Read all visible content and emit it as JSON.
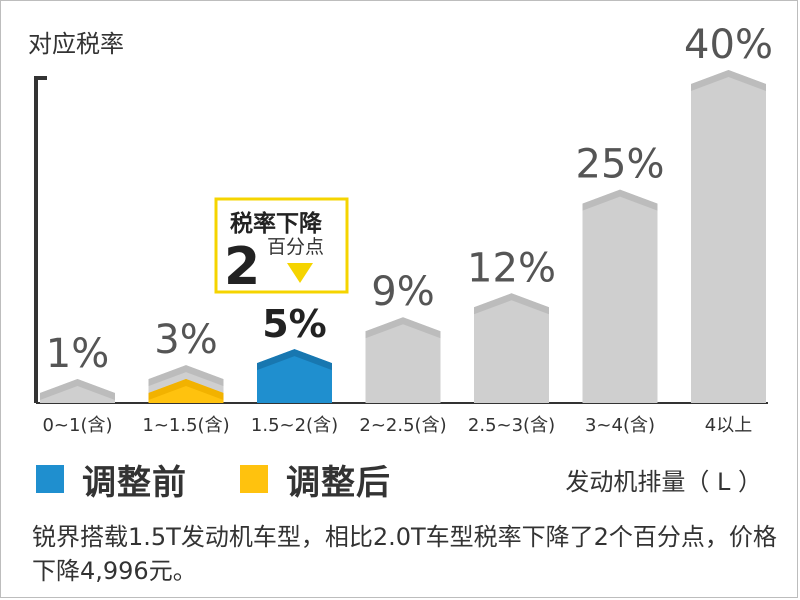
{
  "chart_data": {
    "type": "bar",
    "ylabel": "对应税率",
    "xlabel": "发动机排量（ L ）",
    "categories": [
      "0~1(含)",
      "1~1.5(含)",
      "1.5~2(含)",
      "2~2.5(含)",
      "2.5~3(含)",
      "3~4(含)",
      "4以上"
    ],
    "ylim": [
      0,
      40
    ],
    "grid": false,
    "legend_placement": "bottom-left",
    "series": [
      {
        "name": "调整前",
        "values": [
          1,
          3,
          5,
          9,
          12,
          25,
          40
        ]
      },
      {
        "name": "调整后",
        "values": [
          1,
          1,
          5,
          9,
          12,
          25,
          40
        ]
      }
    ],
    "data_labels": [
      "1%",
      "3%",
      "5%",
      "9%",
      "12%",
      "25%",
      "40%"
    ],
    "highlight_category_index": 2,
    "annotation": {
      "title": "税率下降",
      "value": "2",
      "unit": "百分点"
    }
  },
  "legend": {
    "items": [
      {
        "label": "调整前",
        "color": "#1f8fcf"
      },
      {
        "label": "调整后",
        "color": "#ffc20e"
      }
    ]
  },
  "colors": {
    "bar": "#cfcfcf",
    "bar_cap": "#bcbcbc",
    "highlight_bar": "#1f8fcf",
    "highlight_cap": "#1877b0",
    "after_bar": "#ffc20e",
    "after_cap": "#f2b200",
    "annotation_border": "#f5d400",
    "annotation_arrow": "#f5d400"
  },
  "caption": "锐界搭载1.5T发动机车型，相比2.0T车型税率下降了2个百分点，价格下降4,996元。"
}
